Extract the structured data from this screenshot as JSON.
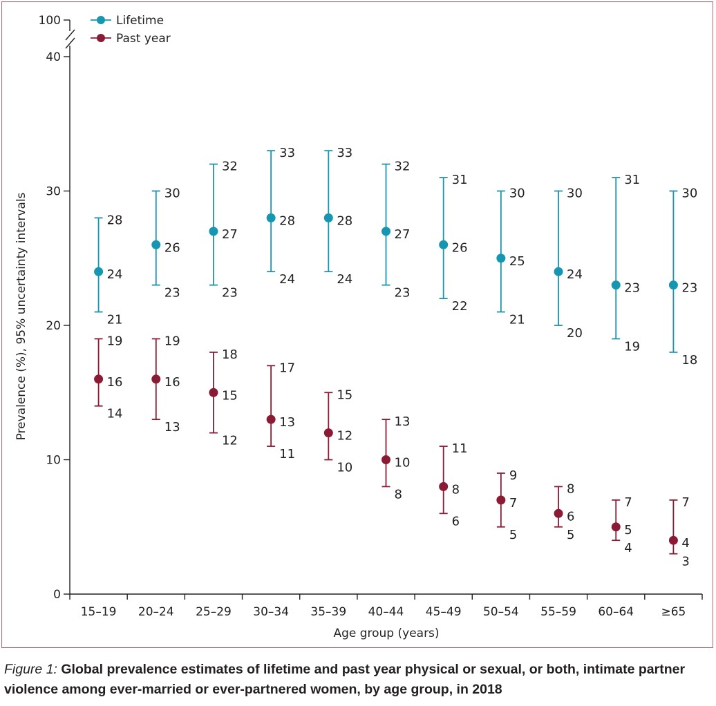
{
  "chart_data": {
    "type": "scatter",
    "xlabel": "Age group (years)",
    "ylabel": "Prevalence (%), 95% uncertainty intervals",
    "categories": [
      "15–19",
      "20–24",
      "25–29",
      "30–34",
      "35–39",
      "40–44",
      "45–49",
      "50–54",
      "55–59",
      "60–64",
      "≥65"
    ],
    "ylim": [
      0,
      40
    ],
    "yticks": [
      "0",
      "10",
      "20",
      "30",
      "40"
    ],
    "axis_break_label": "100",
    "legend_position": "top-left",
    "grid": false,
    "series": [
      {
        "name": "Lifetime",
        "color": "#1696b0",
        "values": [
          24,
          26,
          27,
          28,
          28,
          27,
          26,
          25,
          24,
          23,
          23
        ],
        "upper": [
          28,
          30,
          32,
          33,
          33,
          32,
          31,
          30,
          30,
          31,
          30
        ],
        "lower": [
          21,
          23,
          23,
          24,
          24,
          23,
          22,
          21,
          20,
          19,
          18
        ]
      },
      {
        "name": "Past year",
        "color": "#8b1a35",
        "values": [
          16,
          16,
          15,
          13,
          12,
          10,
          8,
          7,
          6,
          5,
          4
        ],
        "upper": [
          19,
          19,
          18,
          17,
          15,
          13,
          11,
          9,
          8,
          7,
          7
        ],
        "lower": [
          14,
          13,
          12,
          11,
          10,
          8,
          6,
          5,
          5,
          4,
          3
        ]
      }
    ]
  },
  "caption": {
    "label": "Figure 1:",
    "text": " Global prevalence estimates of lifetime and past year physical or sexual, or both, intimate partner violence among ever-married or ever-partnered women, by age group, in 2018"
  }
}
